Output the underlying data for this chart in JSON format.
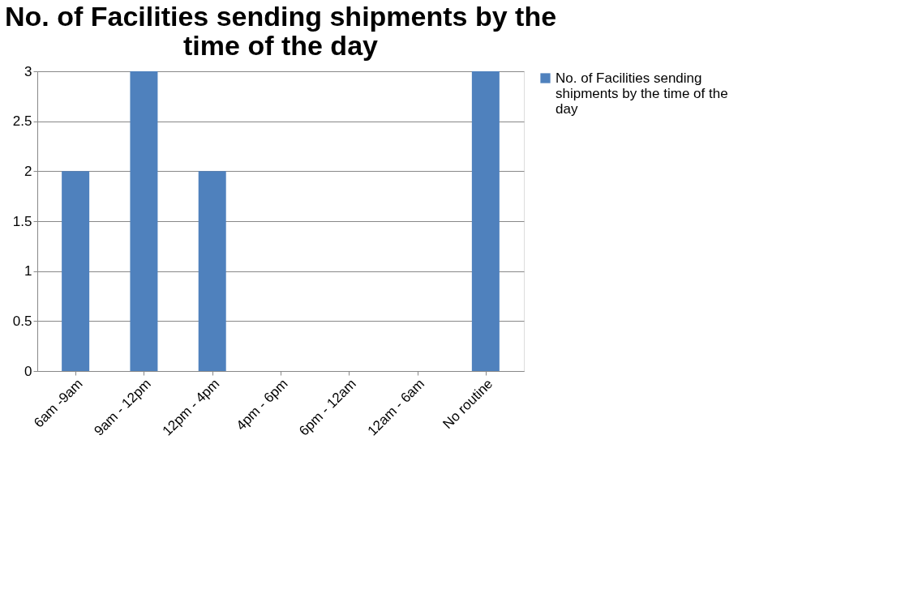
{
  "chart_data": {
    "type": "bar",
    "title": "No. of Facilities sending shipments by the time of the day",
    "categories": [
      "6am -9am",
      "9am - 12pm",
      "12pm - 4pm",
      "4pm - 6pm",
      "6pm - 12am",
      "12am - 6am",
      "No routine"
    ],
    "series": [
      {
        "name": "No. of Facilities sending shipments by the time of the day",
        "color": "#4f81bd",
        "values": [
          2,
          3,
          2,
          0,
          0,
          0,
          3
        ]
      }
    ],
    "ylim": [
      0,
      3
    ],
    "yticks": [
      0,
      0.5,
      1,
      1.5,
      2,
      2.5,
      3
    ],
    "grid": "y",
    "legend": "right"
  }
}
